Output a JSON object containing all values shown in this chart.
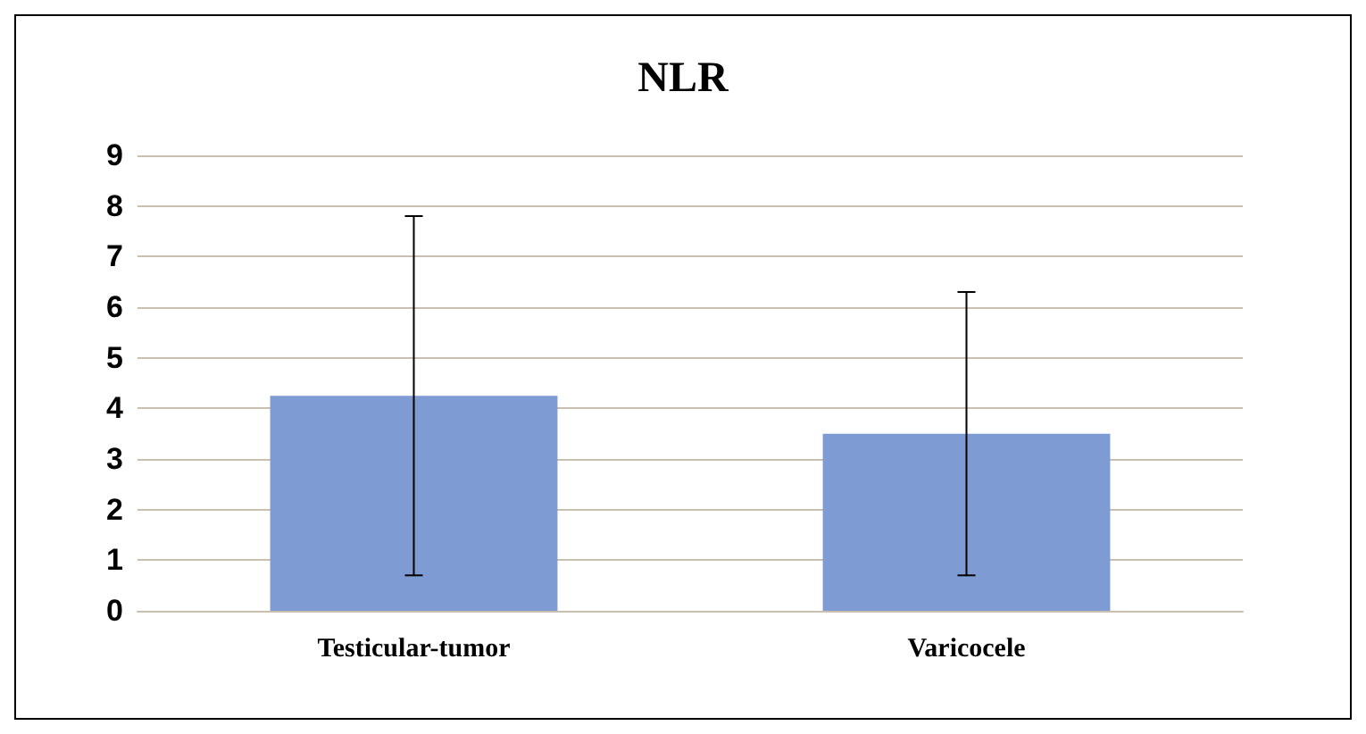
{
  "chart_data": {
    "type": "bar",
    "title": "NLR",
    "categories": [
      "Testicular-tumor",
      "Varicocele"
    ],
    "values": [
      4.25,
      3.5
    ],
    "color": "#7f9bd3",
    "errors": [
      [
        0.7,
        7.8
      ],
      [
        0.7,
        6.3
      ]
    ],
    "ylim": [
      0,
      9
    ],
    "yticks": [
      0,
      1,
      2,
      3,
      4,
      5,
      6,
      7,
      8,
      9
    ],
    "grid": "y"
  }
}
